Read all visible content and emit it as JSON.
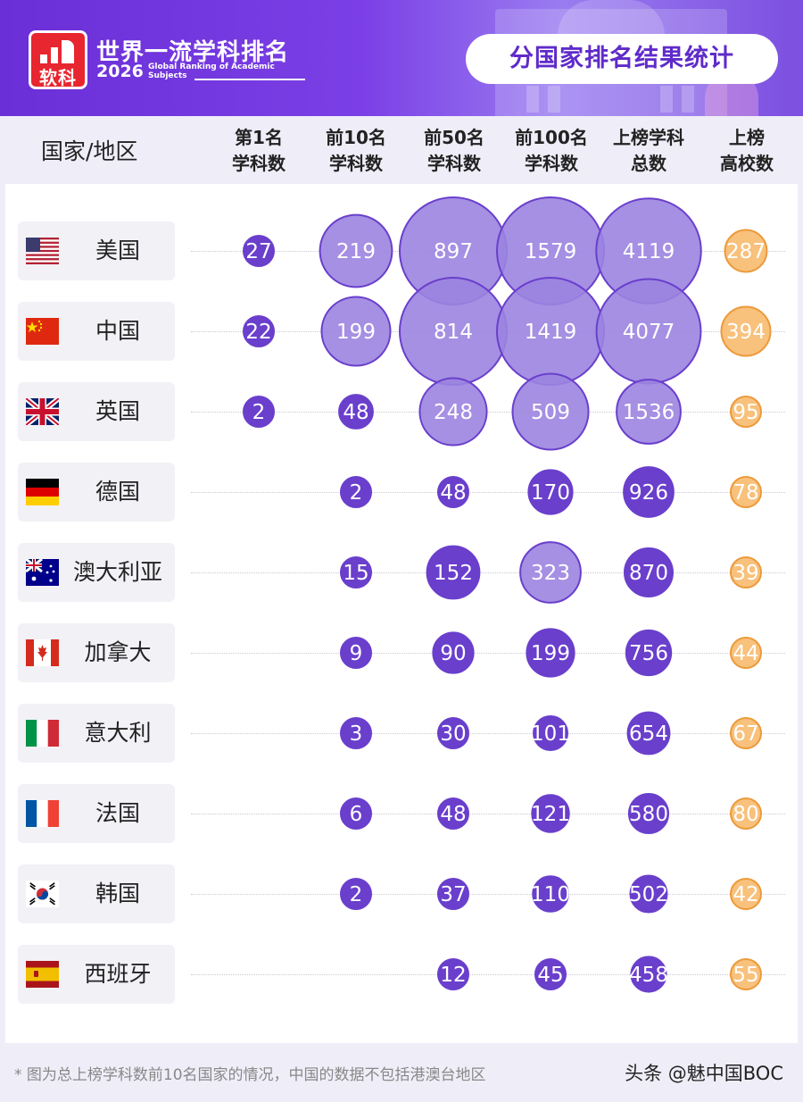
{
  "header": {
    "brand_logo_text": "软科",
    "brand_title": "世界一流学科排名",
    "brand_year": "2026",
    "brand_subtitle": "Global Ranking of Academic Subjects",
    "section_title": "分国家排名结果统计"
  },
  "table_header": {
    "country_label": "国家/地区",
    "columns": [
      {
        "line1": "第1名",
        "line2": "学科数"
      },
      {
        "line1": "前10名",
        "line2": "学科数"
      },
      {
        "line1": "前50名",
        "line2": "学科数"
      },
      {
        "line1": "前100名",
        "line2": "学科数"
      },
      {
        "line1": "上榜学科",
        "line2": "总数"
      },
      {
        "line1": "上榜",
        "line2": "高校数"
      }
    ]
  },
  "chart_data": {
    "type": "table",
    "categories": [
      "美国",
      "中国",
      "英国",
      "德国",
      "澳大利亚",
      "加拿大",
      "意大利",
      "法国",
      "韩国",
      "西班牙"
    ],
    "series": [
      {
        "name": "第1名学科数",
        "values": [
          27,
          22,
          2,
          null,
          null,
          null,
          null,
          null,
          null,
          null
        ]
      },
      {
        "name": "前10名学科数",
        "values": [
          219,
          199,
          48,
          2,
          15,
          9,
          3,
          6,
          2,
          null
        ]
      },
      {
        "name": "前50名学科数",
        "values": [
          897,
          814,
          248,
          48,
          152,
          90,
          30,
          48,
          37,
          12
        ]
      },
      {
        "name": "前100名学科数",
        "values": [
          1579,
          1419,
          509,
          170,
          323,
          199,
          101,
          121,
          110,
          45
        ]
      },
      {
        "name": "上榜学科总数",
        "values": [
          4119,
          4077,
          1536,
          926,
          870,
          756,
          654,
          580,
          502,
          458
        ]
      },
      {
        "name": "上榜高校数",
        "values": [
          287,
          394,
          95,
          78,
          39,
          44,
          67,
          80,
          42,
          55
        ]
      }
    ],
    "colors": {
      "purple": "#6a3fcc",
      "purple_light": "#9b84e0",
      "orange": "#f5a54a",
      "orange_light": "#f8c17c"
    },
    "flags": [
      "usa-flag",
      "china-flag",
      "uk-flag",
      "germany-flag",
      "australia-flag",
      "canada-flag",
      "italy-flag",
      "france-flag",
      "korea-flag",
      "spain-flag"
    ]
  },
  "footer": {
    "footnote": "* 图为总上榜学科数前10名国家的情况，中国的数据不包括港澳台地区",
    "watermark": "头条 @魅中国BOC"
  }
}
